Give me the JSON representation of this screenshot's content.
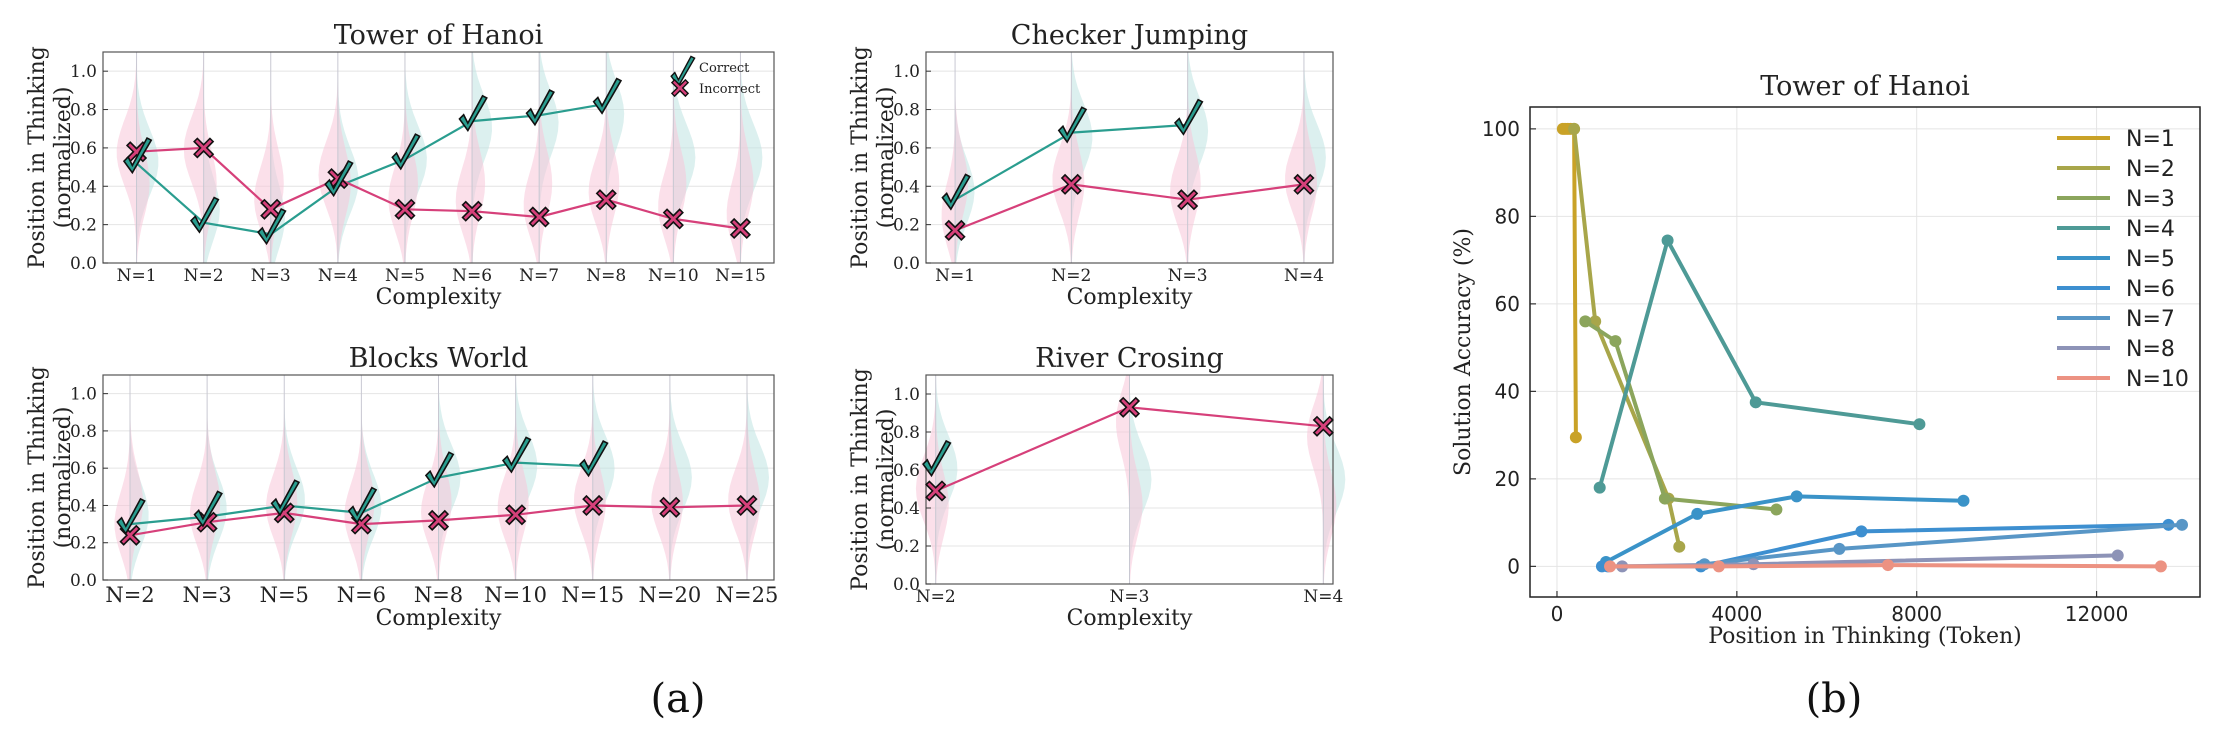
{
  "colors": {
    "correct": "#2a9d8f",
    "incorrect": "#d6407a",
    "correct_fill": "#bfe4e1",
    "incorrect_fill": "#f7c6d8",
    "grid": "#e4e4e4"
  },
  "captions": {
    "a": "(a)",
    "b": "(b)"
  },
  "panel_a": {
    "legend": {
      "correct": "Correct",
      "incorrect": "Incorrect"
    },
    "ylabel_line1": "Position in Thinking",
    "ylabel_line2": "(normalized)",
    "xlabel": "Complexity"
  },
  "chart_data": [
    {
      "type": "line",
      "title": "Tower of Hanoi",
      "xlabel": "Complexity",
      "ylabel": "Position in Thinking (normalized)",
      "ylim": [
        0,
        1.1
      ],
      "yticks": [
        "0.0",
        "0.2",
        "0.4",
        "0.6",
        "0.8",
        "1.0"
      ],
      "categories": [
        "N=1",
        "N=2",
        "N=3",
        "N=4",
        "N=5",
        "N=6",
        "N=7",
        "N=8",
        "N=10",
        "N=15"
      ],
      "legend": "top-right",
      "series": [
        {
          "name": "Correct",
          "values": [
            0.52,
            0.21,
            0.15,
            0.4,
            0.54,
            0.74,
            0.77,
            0.83,
            null,
            null
          ]
        },
        {
          "name": "Incorrect",
          "values": [
            0.58,
            0.6,
            0.28,
            0.44,
            0.28,
            0.27,
            0.24,
            0.33,
            0.23,
            0.18
          ]
        }
      ]
    },
    {
      "type": "line",
      "title": "Checker Jumping",
      "xlabel": "Complexity",
      "ylabel": "Position in Thinking (normalized)",
      "ylim": [
        0,
        1.1
      ],
      "yticks": [
        "0.0",
        "0.2",
        "0.4",
        "0.6",
        "0.8",
        "1.0"
      ],
      "categories": [
        "N=1",
        "N=2",
        "N=3",
        "N=4"
      ],
      "series": [
        {
          "name": "Correct",
          "values": [
            0.33,
            0.68,
            0.72,
            null
          ]
        },
        {
          "name": "Incorrect",
          "values": [
            0.17,
            0.41,
            0.33,
            0.41
          ]
        }
      ]
    },
    {
      "type": "line",
      "title": "Blocks World",
      "xlabel": "Complexity",
      "ylabel": "Position in Thinking (normalized)",
      "ylim": [
        0,
        1.1
      ],
      "yticks": [
        "0.0",
        "0.2",
        "0.4",
        "0.6",
        "0.8",
        "1.0"
      ],
      "categories": [
        "N=2",
        "N=3",
        "N=5",
        "N=6",
        "N=8",
        "N=10",
        "N=15",
        "N=20",
        "N=25"
      ],
      "series": [
        {
          "name": "Correct",
          "values": [
            0.3,
            0.34,
            0.4,
            0.36,
            0.55,
            0.63,
            0.61,
            null,
            null
          ]
        },
        {
          "name": "Incorrect",
          "values": [
            0.24,
            0.31,
            0.36,
            0.3,
            0.32,
            0.35,
            0.4,
            0.39,
            0.4
          ]
        }
      ]
    },
    {
      "type": "line",
      "title": "River Crosing",
      "xlabel": "Complexity",
      "ylabel": "Position in Thinking (normalized)",
      "ylim": [
        0,
        1.1
      ],
      "yticks": [
        "0.0",
        "0.2",
        "0.4",
        "0.6",
        "0.8",
        "1.0"
      ],
      "categories": [
        "N=2",
        "N=3",
        "N=4"
      ],
      "series": [
        {
          "name": "Correct",
          "values": [
            0.62,
            null,
            null
          ]
        },
        {
          "name": "Incorrect",
          "values": [
            0.49,
            0.93,
            0.83
          ]
        }
      ]
    },
    {
      "type": "line",
      "title": "Tower of Hanoi",
      "xlabel": "Position in Thinking (Token)",
      "ylabel": "Solution Accuracy (%)",
      "xlim": [
        -600,
        14300
      ],
      "ylim": [
        -7,
        105
      ],
      "xticks": [
        0,
        4000,
        8000,
        12000
      ],
      "xtick_labels": [
        "0",
        "4000",
        "8000",
        "12000"
      ],
      "yticks": [
        0,
        20,
        40,
        60,
        80,
        100
      ],
      "ytick_labels": [
        "0",
        "20",
        "40",
        "60",
        "80",
        "100"
      ],
      "grid": true,
      "legend": "top-right",
      "series": [
        {
          "name": "N=1",
          "color": "#c9a227",
          "x": [
            130,
            180,
            240,
            300,
            380,
            420
          ],
          "y": [
            100,
            100,
            100,
            100,
            100,
            29.5
          ]
        },
        {
          "name": "N=2",
          "color": "#a8a64a",
          "x": [
            380,
            850,
            2480,
            2720
          ],
          "y": [
            100,
            56,
            15.5,
            4.5
          ]
        },
        {
          "name": "N=3",
          "color": "#8ba55c",
          "x": [
            630,
            1300,
            2400,
            4880
          ],
          "y": [
            56,
            51.5,
            15.5,
            13
          ]
        },
        {
          "name": "N=4",
          "color": "#4e9a96",
          "x": [
            950,
            2460,
            4420,
            8060
          ],
          "y": [
            18,
            74.5,
            37.5,
            32.5
          ]
        },
        {
          "name": "N=5",
          "color": "#3a93c8",
          "x": [
            1090,
            3120,
            5330,
            9040
          ],
          "y": [
            1,
            12,
            16,
            15
          ]
        },
        {
          "name": "N=6",
          "color": "#3d8fd0",
          "x": [
            1000,
            1130,
            3200,
            6770,
            13600
          ],
          "y": [
            0,
            0,
            0,
            8,
            9.5
          ]
        },
        {
          "name": "N=7",
          "color": "#5896c6",
          "x": [
            3280,
            6280,
            13900
          ],
          "y": [
            0.5,
            4,
            9.5
          ]
        },
        {
          "name": "N=8",
          "color": "#8d93b7",
          "x": [
            1450,
            4370,
            12470
          ],
          "y": [
            0,
            0.5,
            2.5
          ]
        },
        {
          "name": "N=10",
          "color": "#ec9282",
          "x": [
            1180,
            3600,
            7360,
            13430
          ],
          "y": [
            0,
            0,
            0.3,
            0
          ]
        }
      ]
    }
  ]
}
